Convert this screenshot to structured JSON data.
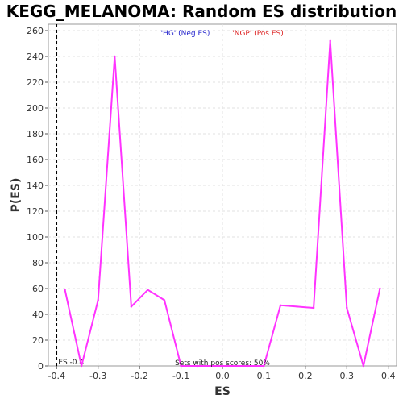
{
  "chart_data": {
    "type": "line",
    "title": "KEGG_MELANOMA: Random ES distribution",
    "xlabel": "ES",
    "ylabel": "P(ES)",
    "xlim": [
      -0.42,
      0.42
    ],
    "ylim": [
      0,
      265
    ],
    "xticks": [
      -0.4,
      -0.3,
      -0.2,
      -0.1,
      0.0,
      0.1,
      0.2,
      0.3,
      0.4
    ],
    "xtick_labels": [
      "-0.4",
      "-0.3",
      "-0.2",
      "-0.1",
      "0.0",
      "0.1",
      "0.2",
      "0.3",
      "0.4"
    ],
    "yticks": [
      0,
      20,
      40,
      60,
      80,
      100,
      120,
      140,
      160,
      180,
      200,
      220,
      240,
      260
    ],
    "grid": true,
    "series": [
      {
        "color": "#ff33ff",
        "x": [
          -0.38,
          -0.34,
          -0.3,
          -0.26,
          -0.22,
          -0.18,
          -0.14,
          -0.1,
          -0.06,
          -0.02,
          0.02,
          0.06,
          0.1,
          0.14,
          0.18,
          0.22,
          0.26,
          0.3,
          0.34,
          0.38
        ],
        "y": [
          59,
          0,
          51,
          240,
          46,
          59,
          51,
          0,
          0,
          0,
          0,
          0,
          0,
          47,
          46,
          45,
          252,
          45,
          0,
          60
        ]
      }
    ],
    "legend": {
      "neg": {
        "label": "'HG' (Neg ES)",
        "color": "#2222cc"
      },
      "pos": {
        "label": "'NGP' (Pos ES)",
        "color": "#dd2222"
      }
    },
    "es_marker": {
      "x": -0.4,
      "label": "ES -0.4"
    },
    "annotation": "Sets with pos scores: 50%"
  }
}
